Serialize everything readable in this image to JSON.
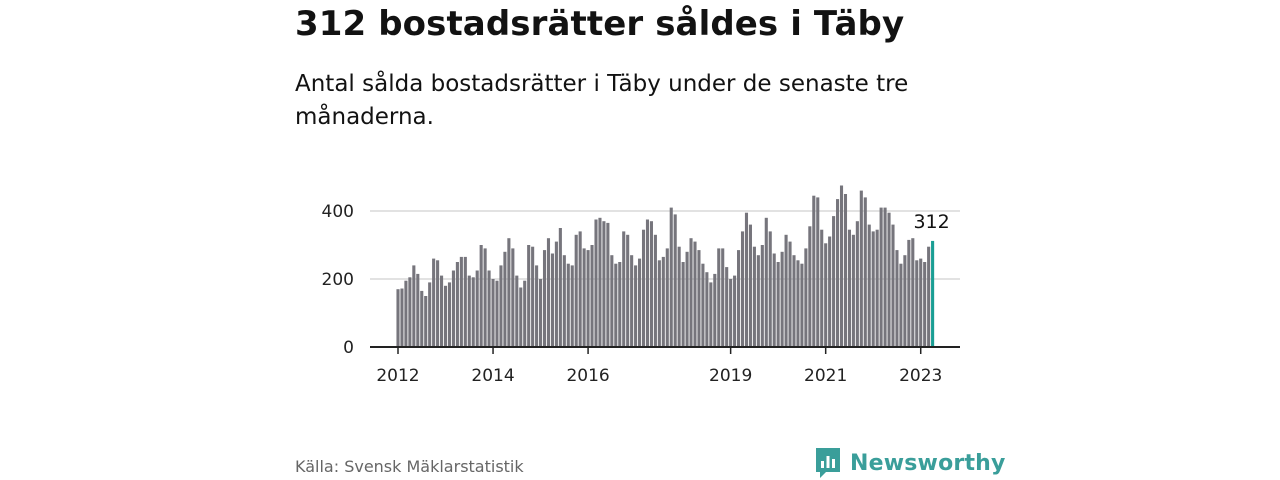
{
  "title": "312 bostadsrätter såldes i Täby",
  "subtitle": "Antal sålda bostadsrätter i Täby under de senaste tre månaderna.",
  "source": "Källa: Svensk Mäklarstatistik",
  "brand": "Newsworthy",
  "colors": {
    "bar": "#76757c",
    "highlight": "#1a9e94",
    "brand": "#3a9e9a",
    "grid": "#d9d9d9",
    "axis": "#222222"
  },
  "chart_data": {
    "type": "bar",
    "title": "312 bostadsrätter såldes i Täby",
    "subtitle": "Antal sålda bostadsrätter i Täby under de senaste tre månaderna.",
    "xlabel": "",
    "ylabel": "",
    "ylim": [
      0,
      500
    ],
    "yticks": [
      0,
      200,
      400
    ],
    "grid": true,
    "start_period": "2012-01",
    "end_period": "2023-04",
    "x_tick_labels": [
      {
        "label": "2012",
        "index": 0
      },
      {
        "label": "2014",
        "index": 24
      },
      {
        "label": "2016",
        "index": 48
      },
      {
        "label": "2019",
        "index": 84
      },
      {
        "label": "2021",
        "index": 108
      },
      {
        "label": "2023",
        "index": 132
      }
    ],
    "highlight_label": "312",
    "highlight_index": 135,
    "values": [
      170,
      172,
      195,
      205,
      240,
      215,
      165,
      150,
      190,
      260,
      255,
      210,
      180,
      190,
      225,
      250,
      265,
      265,
      210,
      205,
      225,
      300,
      290,
      225,
      200,
      195,
      240,
      280,
      320,
      290,
      210,
      175,
      195,
      300,
      295,
      240,
      200,
      285,
      320,
      275,
      310,
      350,
      270,
      245,
      240,
      330,
      340,
      290,
      285,
      300,
      375,
      380,
      370,
      365,
      270,
      245,
      250,
      340,
      330,
      270,
      240,
      260,
      345,
      375,
      370,
      330,
      255,
      265,
      290,
      410,
      390,
      295,
      250,
      280,
      320,
      310,
      285,
      245,
      220,
      190,
      215,
      290,
      290,
      235,
      200,
      210,
      285,
      340,
      395,
      360,
      295,
      270,
      300,
      380,
      340,
      275,
      250,
      280,
      330,
      310,
      270,
      255,
      245,
      290,
      355,
      445,
      440,
      345,
      305,
      325,
      385,
      435,
      475,
      450,
      345,
      330,
      370,
      460,
      440,
      360,
      340,
      345,
      410,
      410,
      395,
      360,
      285,
      245,
      270,
      315,
      320,
      255,
      260,
      250,
      295,
      312
    ]
  }
}
